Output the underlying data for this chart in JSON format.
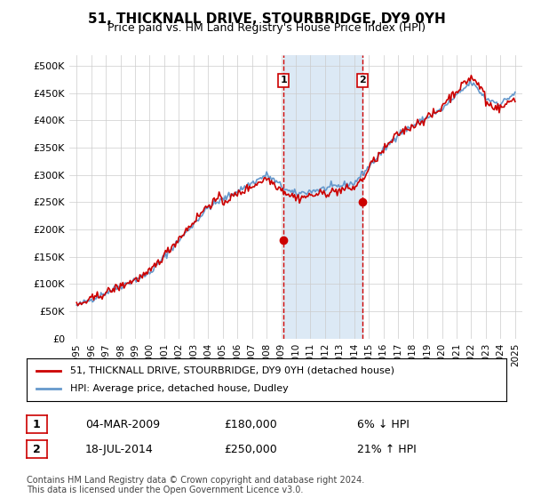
{
  "title": "51, THICKNALL DRIVE, STOURBRIDGE, DY9 0YH",
  "subtitle": "Price paid vs. HM Land Registry's House Price Index (HPI)",
  "ylabel_ticks": [
    "£0",
    "£50K",
    "£100K",
    "£150K",
    "£200K",
    "£250K",
    "£300K",
    "£350K",
    "£400K",
    "£450K",
    "£500K"
  ],
  "ytick_values": [
    0,
    50000,
    100000,
    150000,
    200000,
    250000,
    300000,
    350000,
    400000,
    450000,
    500000
  ],
  "ylim": [
    0,
    520000
  ],
  "xlim_start": 1994.5,
  "xlim_end": 2025.5,
  "xtick_years": [
    1995,
    1996,
    1997,
    1998,
    1999,
    2000,
    2001,
    2002,
    2003,
    2004,
    2005,
    2006,
    2007,
    2008,
    2009,
    2010,
    2011,
    2012,
    2013,
    2014,
    2015,
    2016,
    2017,
    2018,
    2019,
    2020,
    2021,
    2022,
    2023,
    2024,
    2025
  ],
  "hpi_color": "#6699cc",
  "price_color": "#cc0000",
  "sale1_x": 2009.17,
  "sale1_y": 180000,
  "sale1_label": "1",
  "sale2_x": 2014.54,
  "sale2_y": 250000,
  "sale2_label": "2",
  "vline_color": "#cc0000",
  "highlight_fill": "#dce9f5",
  "marker_color": "#cc0000",
  "legend_line1": "51, THICKNALL DRIVE, STOURBRIDGE, DY9 0YH (detached house)",
  "legend_line2": "HPI: Average price, detached house, Dudley",
  "table_row1_num": "1",
  "table_row1_date": "04-MAR-2009",
  "table_row1_price": "£180,000",
  "table_row1_hpi": "6% ↓ HPI",
  "table_row2_num": "2",
  "table_row2_date": "18-JUL-2014",
  "table_row2_price": "£250,000",
  "table_row2_hpi": "21% ↑ HPI",
  "footnote": "Contains HM Land Registry data © Crown copyright and database right 2024.\nThis data is licensed under the Open Government Licence v3.0.",
  "background_color": "#ffffff",
  "grid_color": "#cccccc"
}
